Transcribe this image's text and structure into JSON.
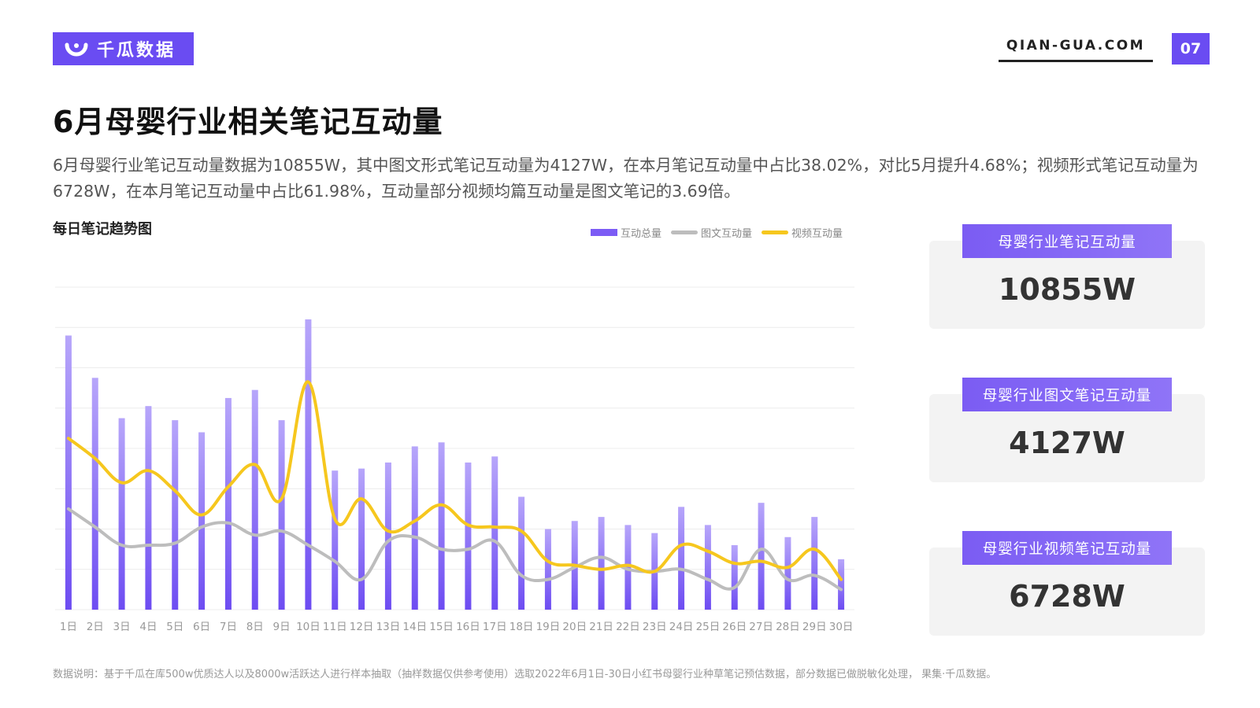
{
  "header": {
    "brand": "千瓜数据",
    "site": "QIAN-GUA.COM",
    "page_number": "07"
  },
  "title": "6月母婴行业相关笔记互动量",
  "description": "6月母婴行业笔记互动量数据为10855W，其中图文形式笔记互动量为4127W，在本月笔记互动量中占比38.02%，对比5月提升4.68%；视频形式笔记互动量为6728W，在本月笔记互动量中占比61.98%，互动量部分视频均篇互动量是图文笔记的3.69倍。",
  "chart_title": "每日笔记趋势图",
  "chart_data": {
    "type": "bar",
    "categories": [
      "1日",
      "2日",
      "3日",
      "4日",
      "5日",
      "6日",
      "7日",
      "8日",
      "9日",
      "10日",
      "11日",
      "12日",
      "13日",
      "14日",
      "15日",
      "16日",
      "17日",
      "18日",
      "19日",
      "20日",
      "21日",
      "22日",
      "23日",
      "24日",
      "25日",
      "26日",
      "27日",
      "28日",
      "29日",
      "30日"
    ],
    "ylim": [
      0,
      8
    ],
    "grid": true,
    "legend_position": "top-right",
    "series": [
      {
        "name": "互动总量",
        "type": "bar",
        "color": "#7c5cf5",
        "values": [
          6.8,
          5.75,
          4.75,
          5.05,
          4.7,
          4.4,
          5.25,
          5.45,
          4.7,
          7.2,
          3.45,
          3.5,
          3.65,
          4.05,
          4.15,
          3.65,
          3.8,
          2.8,
          2.0,
          2.2,
          2.3,
          2.1,
          1.9,
          2.55,
          2.1,
          1.6,
          2.65,
          1.8,
          2.3,
          1.25
        ]
      },
      {
        "name": "图文互动量",
        "type": "line",
        "color": "#bdbdbd",
        "values": [
          2.5,
          2.05,
          1.6,
          1.6,
          1.65,
          2.05,
          2.15,
          1.85,
          1.95,
          1.6,
          1.2,
          0.75,
          1.7,
          1.8,
          1.5,
          1.5,
          1.7,
          0.85,
          0.75,
          1.05,
          1.3,
          1.0,
          0.95,
          1.0,
          0.75,
          0.55,
          1.5,
          0.75,
          0.85,
          0.5
        ]
      },
      {
        "name": "视频互动量",
        "type": "line",
        "color": "#f6c71e",
        "values": [
          4.25,
          3.75,
          3.15,
          3.45,
          2.95,
          2.35,
          3.05,
          3.6,
          2.75,
          5.65,
          2.25,
          2.75,
          1.95,
          2.2,
          2.6,
          2.1,
          2.05,
          1.95,
          1.2,
          1.1,
          1.0,
          1.1,
          0.95,
          1.6,
          1.45,
          1.15,
          1.2,
          1.05,
          1.5,
          0.75
        ]
      }
    ]
  },
  "kpis": [
    {
      "label": "母婴行业笔记互动量",
      "value": "10855W"
    },
    {
      "label": "母婴行业图文笔记互动量",
      "value": "4127W"
    },
    {
      "label": "母婴行业视频笔记互动量",
      "value": "6728W"
    }
  ],
  "footnote": "数据说明：基于千瓜在库500w优质达人以及8000w活跃达人进行样本抽取（抽样数据仅供参考使用）选取2022年6月1日-30日小红书母婴行业种草笔记预估数据，部分数据已做脱敏化处理，  果集·千瓜数据。"
}
